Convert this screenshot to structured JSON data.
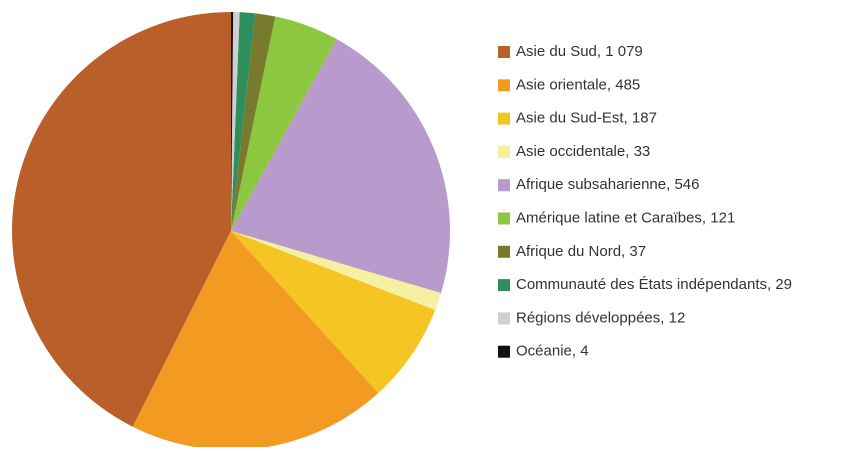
{
  "chart_data": {
    "type": "pie",
    "categories": [
      "Asie du Sud, 1 079",
      "Asie orientale, 485",
      "Asie du Sud-Est, 187",
      "Asie occidentale, 33",
      "Afrique subsaharienne, 546",
      "Amérique latine et Caraïbes, 121",
      "Afrique du Nord, 37",
      "Communauté des États indépendants, 29",
      "Régions développées, 12",
      "Océanie, 4"
    ],
    "values": [
      1079,
      485,
      187,
      33,
      546,
      121,
      37,
      29,
      12,
      4
    ],
    "colors": [
      "#b9602a",
      "#f39a22",
      "#f5c623",
      "#f6f0a2",
      "#b89bcc",
      "#8dc63f",
      "#787a2e",
      "#2e8e5c",
      "#cfcfcf",
      "#111111"
    ],
    "legend": "right"
  }
}
